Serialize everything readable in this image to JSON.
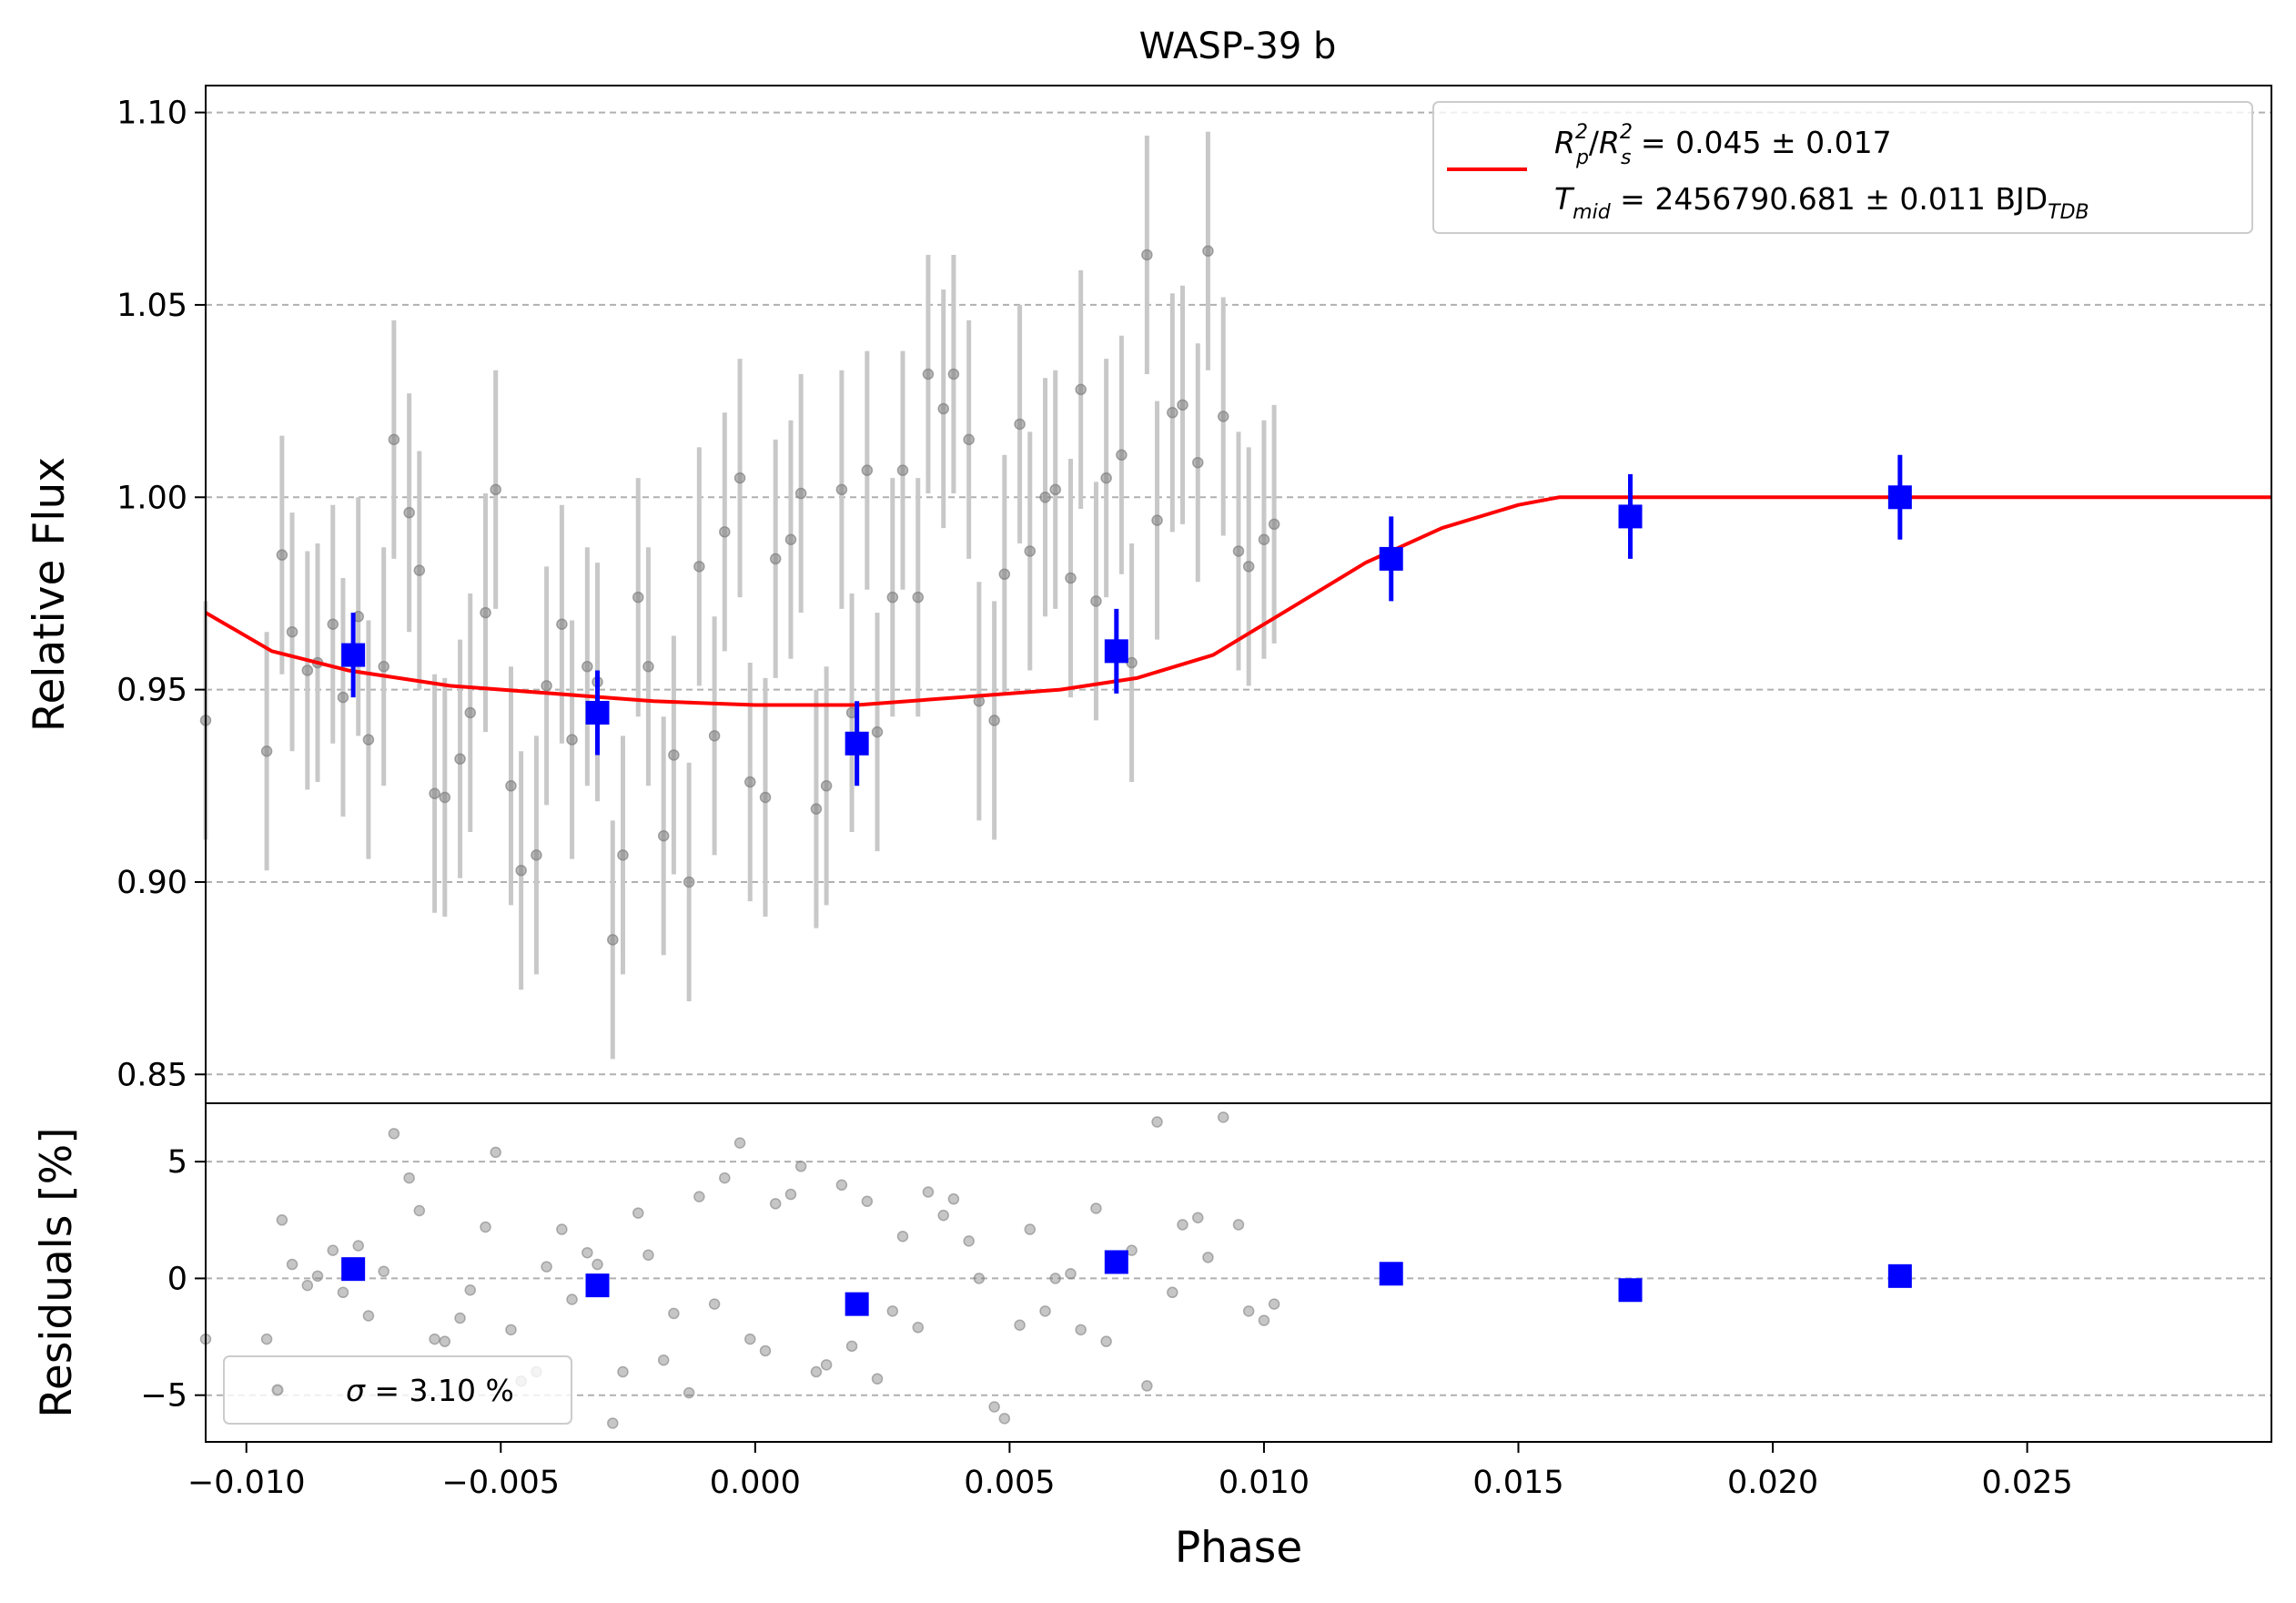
{
  "chart_data": {
    "type": "scatter",
    "title": "WASP-39 b",
    "xlabel": "Phase",
    "xlim": [
      -0.0108,
      0.0298
    ],
    "top_panel": {
      "ylabel": "Relative Flux",
      "ylim": [
        0.8425,
        1.107
      ],
      "y_ticks": [
        0.85,
        0.9,
        0.95,
        1.0,
        1.05,
        1.1
      ],
      "y_tick_labels": [
        "0.85",
        "0.90",
        "0.95",
        "1.00",
        "1.05",
        "1.10"
      ],
      "grid": "horizontal dashed",
      "legend": {
        "placement": "top-right",
        "line1_sym1": "R",
        "line1_sub1": "p",
        "line1_sup1": "2",
        "line1_slash": "/",
        "line1_sym2": "R",
        "line1_sub2": "s",
        "line1_sup2": "2",
        "line1_value": " = 0.045 ± 0.017",
        "line2_sym": "T",
        "line2_sub": "mid",
        "line2_value": " = 2456790.681 ± 0.011 BJD",
        "line2_unit_sub": "TDB"
      },
      "series": [
        {
          "kind": "raw",
          "color": "#808080",
          "points": [
            [
              -0.0108,
              0.942
            ],
            [
              -0.0096,
              0.934
            ],
            [
              -0.0093,
              0.985
            ],
            [
              -0.0091,
              0.965
            ],
            [
              -0.0088,
              0.955
            ],
            [
              -0.0086,
              0.957
            ],
            [
              -0.0083,
              0.967
            ],
            [
              -0.0081,
              0.948
            ],
            [
              -0.0078,
              0.969
            ],
            [
              -0.0076,
              0.937
            ],
            [
              -0.0073,
              0.956
            ],
            [
              -0.0071,
              1.015
            ],
            [
              -0.0068,
              0.996
            ],
            [
              -0.0066,
              0.981
            ],
            [
              -0.0063,
              0.923
            ],
            [
              -0.0061,
              0.922
            ],
            [
              -0.0058,
              0.932
            ],
            [
              -0.0056,
              0.944
            ],
            [
              -0.0053,
              0.97
            ],
            [
              -0.0051,
              1.002
            ],
            [
              -0.0048,
              0.925
            ],
            [
              -0.0046,
              0.903
            ],
            [
              -0.0043,
              0.907
            ],
            [
              -0.0041,
              0.951
            ],
            [
              -0.0038,
              0.967
            ],
            [
              -0.0036,
              0.937
            ],
            [
              -0.0033,
              0.956
            ],
            [
              -0.0031,
              0.952
            ],
            [
              -0.0028,
              0.885
            ],
            [
              -0.0026,
              0.907
            ],
            [
              -0.0023,
              0.974
            ],
            [
              -0.0021,
              0.956
            ],
            [
              -0.0018,
              0.912
            ],
            [
              -0.0016,
              0.933
            ],
            [
              -0.0013,
              0.9
            ],
            [
              -0.0011,
              0.982
            ],
            [
              -0.0008,
              0.938
            ],
            [
              -0.0006,
              0.991
            ],
            [
              -0.0003,
              1.005
            ],
            [
              -0.0001,
              0.926
            ],
            [
              0.0002,
              0.922
            ],
            [
              0.0004,
              0.984
            ],
            [
              0.0007,
              0.989
            ],
            [
              0.0009,
              1.001
            ],
            [
              0.0012,
              0.919
            ],
            [
              0.0014,
              0.925
            ],
            [
              0.0017,
              1.002
            ],
            [
              0.0019,
              0.944
            ],
            [
              0.0022,
              1.007
            ],
            [
              0.0024,
              0.939
            ],
            [
              0.0027,
              0.974
            ],
            [
              0.0029,
              1.007
            ],
            [
              0.0032,
              0.974
            ],
            [
              0.0034,
              1.032
            ],
            [
              0.0037,
              1.023
            ],
            [
              0.0039,
              1.032
            ],
            [
              0.0042,
              1.015
            ],
            [
              0.0044,
              0.947
            ],
            [
              0.0047,
              0.942
            ],
            [
              0.0049,
              0.98
            ],
            [
              0.0052,
              1.019
            ],
            [
              0.0054,
              0.986
            ],
            [
              0.0057,
              1.0
            ],
            [
              0.0059,
              1.002
            ],
            [
              0.0062,
              0.979
            ],
            [
              0.0064,
              1.028
            ],
            [
              0.0067,
              0.973
            ],
            [
              0.0069,
              1.005
            ],
            [
              0.0072,
              1.011
            ],
            [
              0.0074,
              0.957
            ],
            [
              0.0077,
              1.063
            ],
            [
              0.0079,
              0.994
            ],
            [
              0.0082,
              1.022
            ],
            [
              0.0084,
              1.024
            ],
            [
              0.0087,
              1.009
            ],
            [
              0.0089,
              1.064
            ],
            [
              0.0092,
              1.021
            ],
            [
              0.0095,
              0.986
            ],
            [
              0.0097,
              0.982
            ],
            [
              0.01,
              0.989
            ],
            [
              0.0102,
              0.993
            ]
          ]
        },
        {
          "kind": "binned",
          "color": "#0000ff",
          "points": [
            [
              -0.0079,
              0.959
            ],
            [
              -0.0031,
              0.944
            ],
            [
              0.002,
              0.936
            ],
            [
              0.0071,
              0.96
            ],
            [
              0.0125,
              0.984
            ],
            [
              0.0172,
              0.995
            ],
            [
              0.0225,
              1.0
            ]
          ]
        },
        {
          "kind": "model",
          "color": "#ff0000",
          "points": [
            [
              -0.0108,
              0.97
            ],
            [
              -0.0095,
              0.96
            ],
            [
              -0.008,
              0.955
            ],
            [
              -0.006,
              0.951
            ],
            [
              -0.004,
              0.949
            ],
            [
              -0.002,
              0.947
            ],
            [
              0.0,
              0.946
            ],
            [
              0.002,
              0.946
            ],
            [
              0.004,
              0.948
            ],
            [
              0.006,
              0.95
            ],
            [
              0.0075,
              0.953
            ],
            [
              0.009,
              0.959
            ],
            [
              0.0105,
              0.971
            ],
            [
              0.012,
              0.983
            ],
            [
              0.0135,
              0.992
            ],
            [
              0.015,
              0.998
            ],
            [
              0.0158,
              1.0
            ],
            [
              0.0298,
              1.0
            ]
          ]
        }
      ]
    },
    "bottom_panel": {
      "ylabel": "Residuals [%]",
      "ylim": [
        -7,
        7.5
      ],
      "y_ticks": [
        -5,
        0,
        5
      ],
      "y_tick_labels": [
        "−5",
        "0",
        "5"
      ],
      "x_ticks": [
        -0.01,
        -0.005,
        0.0,
        0.005,
        0.01,
        0.015,
        0.02,
        0.025
      ],
      "x_tick_labels": [
        "−0.010",
        "−0.005",
        "0.000",
        "0.005",
        "0.010",
        "0.015",
        "0.020",
        "0.025"
      ],
      "grid": "horizontal dashed",
      "legend": {
        "placement": "bottom-left",
        "sym": "σ",
        "value": " = 3.10 %"
      },
      "series": [
        {
          "kind": "raw",
          "color": "#808080",
          "points": [
            [
              -0.0108,
              -2.6
            ],
            [
              -0.0096,
              -2.6
            ],
            [
              -0.0093,
              2.5
            ],
            [
              -0.0091,
              0.6
            ],
            [
              -0.0088,
              -0.3
            ],
            [
              -0.0086,
              0.1
            ],
            [
              -0.0083,
              1.2
            ],
            [
              -0.0081,
              -0.6
            ],
            [
              -0.0078,
              1.4
            ],
            [
              -0.0076,
              -1.6
            ],
            [
              -0.0073,
              0.3
            ],
            [
              -0.0071,
              6.2
            ],
            [
              -0.0068,
              4.3
            ],
            [
              -0.0066,
              2.9
            ],
            [
              -0.0063,
              -2.6
            ],
            [
              -0.0061,
              -2.7
            ],
            [
              -0.0058,
              -1.7
            ],
            [
              -0.0056,
              -0.5
            ],
            [
              -0.0053,
              2.2
            ],
            [
              -0.0051,
              5.4
            ],
            [
              -0.0048,
              -2.2
            ],
            [
              -0.0046,
              -4.4
            ],
            [
              -0.0043,
              -4.0
            ],
            [
              -0.0041,
              0.5
            ],
            [
              -0.0038,
              2.1
            ],
            [
              -0.0036,
              -0.9
            ],
            [
              -0.0033,
              1.1
            ],
            [
              -0.0031,
              0.6
            ],
            [
              -0.0028,
              -6.2
            ],
            [
              -0.0026,
              -4.0
            ],
            [
              -0.0023,
              2.8
            ],
            [
              -0.0021,
              1.0
            ],
            [
              -0.0018,
              -3.5
            ],
            [
              -0.0016,
              -1.5
            ],
            [
              -0.0013,
              -4.9
            ],
            [
              -0.0011,
              3.5
            ],
            [
              -0.0008,
              -1.1
            ],
            [
              -0.0006,
              4.3
            ],
            [
              -0.0003,
              5.8
            ],
            [
              -0.0001,
              -2.6
            ],
            [
              0.0002,
              -3.1
            ],
            [
              0.0004,
              3.2
            ],
            [
              0.0007,
              3.6
            ],
            [
              0.0009,
              4.8
            ],
            [
              0.0012,
              -4.0
            ],
            [
              0.0014,
              -3.7
            ],
            [
              0.0017,
              4.0
            ],
            [
              0.0019,
              -2.9
            ],
            [
              0.0022,
              3.3
            ],
            [
              0.0024,
              -4.3
            ],
            [
              0.0027,
              -1.4
            ],
            [
              0.0029,
              1.8
            ],
            [
              0.0032,
              -2.1
            ],
            [
              0.0034,
              3.7
            ],
            [
              0.0037,
              2.7
            ],
            [
              0.0039,
              3.4
            ],
            [
              0.0042,
              1.6
            ],
            [
              0.0044,
              0.0
            ],
            [
              0.0047,
              -5.5
            ],
            [
              0.0049,
              -6.0
            ],
            [
              0.0052,
              -2.0
            ],
            [
              0.0054,
              2.1
            ],
            [
              0.0057,
              -1.4
            ],
            [
              0.0059,
              0.0
            ],
            [
              0.0062,
              0.2
            ],
            [
              0.0064,
              -2.2
            ],
            [
              0.0067,
              3.0
            ],
            [
              0.0069,
              -2.7
            ],
            [
              0.0072,
              0.5
            ],
            [
              0.0074,
              1.2
            ],
            [
              0.0077,
              -4.6
            ],
            [
              0.0079,
              6.7
            ],
            [
              0.0082,
              -0.6
            ],
            [
              0.0084,
              2.3
            ],
            [
              0.0087,
              2.6
            ],
            [
              0.0089,
              0.9
            ],
            [
              0.0092,
              6.9
            ],
            [
              0.0095,
              2.3
            ],
            [
              0.0097,
              -1.4
            ],
            [
              0.01,
              -1.8
            ],
            [
              0.0102,
              -1.1
            ]
          ]
        },
        {
          "kind": "binned",
          "color": "#0000ff",
          "points": [
            [
              -0.0079,
              0.4
            ],
            [
              -0.0031,
              -0.3
            ],
            [
              0.002,
              -1.1
            ],
            [
              0.0071,
              0.7
            ],
            [
              0.0125,
              0.2
            ],
            [
              0.0172,
              -0.5
            ],
            [
              0.0225,
              0.1
            ]
          ]
        }
      ]
    }
  }
}
